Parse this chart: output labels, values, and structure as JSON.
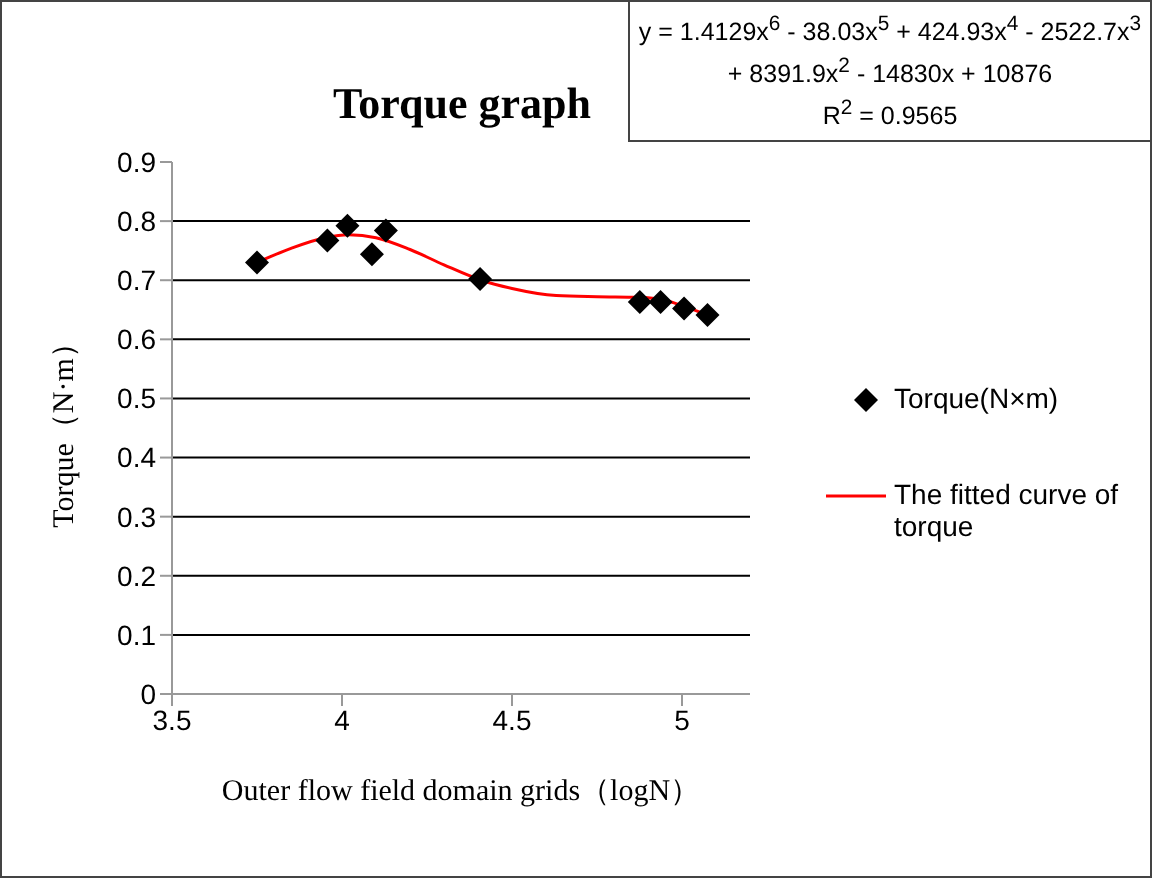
{
  "chart_data": {
    "type": "scatter",
    "title": "Torque graph",
    "xlabel": "Outer flow field domain grids（logN）",
    "ylabel": "Torque（N·m）",
    "x": [
      3.75,
      3.957,
      4.016,
      4.088,
      4.129,
      4.406,
      4.876,
      4.937,
      5.006,
      5.075
    ],
    "series": [
      {
        "name": "Torque(N×m)",
        "color": "#000000",
        "marker": "diamond",
        "values": [
          0.73,
          0.767,
          0.792,
          0.744,
          0.784,
          0.702,
          0.663,
          0.663,
          0.652,
          0.641
        ]
      },
      {
        "name": "The fitted curve of torque",
        "type": "line",
        "color": "#ff0000",
        "marker": "none",
        "x": [
          3.75,
          3.85,
          3.95,
          4.02,
          4.1,
          4.2,
          4.3,
          4.41,
          4.5,
          4.63,
          4.75,
          4.87,
          4.95,
          5.0,
          5.075
        ],
        "values": [
          0.73,
          0.754,
          0.772,
          0.777,
          0.772,
          0.752,
          0.726,
          0.7,
          0.686,
          0.674,
          0.672,
          0.671,
          0.666,
          0.657,
          0.641
        ]
      }
    ],
    "xlim": [
      3.5,
      5.2
    ],
    "xticks": [
      3.5,
      4,
      4.5,
      5
    ],
    "ylim": [
      0,
      0.9
    ],
    "yticks": [
      0,
      0.1,
      0.2,
      0.3,
      0.4,
      0.5,
      0.6,
      0.7,
      0.8,
      0.9
    ],
    "grid": "y",
    "legend": "right",
    "annotations": [
      "y = 1.4129x$^{6}$ - 38.03x$^{5}$ + 424.93x$^{4}$ - 2522.7x$^{3}$ + 8391.9x$^{2}$ - 14830x + 10876",
      "R$^{2}$ = 0.9565"
    ]
  }
}
